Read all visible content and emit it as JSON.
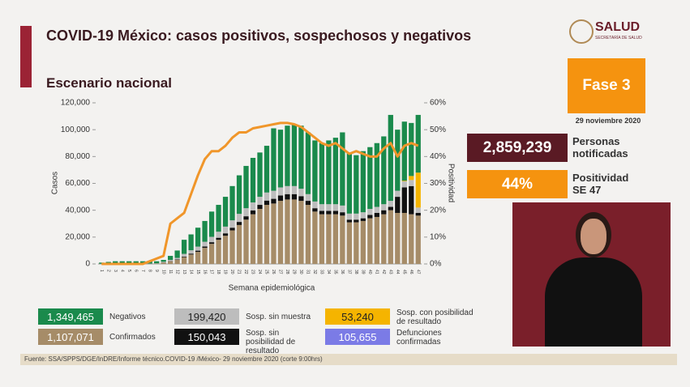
{
  "header": {
    "title": "COVID-19 México: casos positivos, sospechosos y negativos",
    "subtitle": "Escenario nacional",
    "logo": "SALUD",
    "logo_sub": "SECRETARÍA DE SALUD"
  },
  "phase": "Fase 3",
  "date": "29 noviembre 2020",
  "indicators": [
    {
      "figure": "2,859,239",
      "caption": "Personas notificadas",
      "color": "#5a1a24"
    },
    {
      "figure": "44%",
      "caption": "Positividad SE 47",
      "color": "#f5930f"
    }
  ],
  "deaths": {
    "total": "105,655",
    "name": "Defunciones confirmadas",
    "color": "#7b7be6"
  },
  "source": "Fuente: SSA/SPPS/DGE/InDRE/Informe técnico.COVID-19 /México- 29 noviembre 2020 (corte 9:00hrs)",
  "chart_data": {
    "type": "bar",
    "stacked": true,
    "xlabel": "Semana epidemiológica",
    "ylabel": "Casos",
    "categories": [
      "1",
      "2",
      "3",
      "4",
      "5",
      "6",
      "7",
      "8",
      "9",
      "10",
      "11",
      "12",
      "13",
      "14",
      "15",
      "16",
      "17",
      "18",
      "19",
      "20",
      "21",
      "22",
      "23",
      "24",
      "25",
      "26",
      "27",
      "28",
      "29",
      "30",
      "31",
      "32",
      "33",
      "34",
      "35",
      "36",
      "37",
      "38",
      "39",
      "40",
      "41",
      "42",
      "43",
      "44",
      "45",
      "46",
      "47"
    ],
    "series": [
      {
        "name": "Confirmados",
        "total": "1,107,071",
        "color": "#a68c68",
        "values": [
          100,
          150,
          150,
          150,
          200,
          200,
          200,
          200,
          300,
          1000,
          2000,
          3000,
          5000,
          7000,
          9000,
          12000,
          15000,
          18000,
          21000,
          25000,
          29000,
          33000,
          37000,
          41000,
          44000,
          45000,
          47000,
          48000,
          48000,
          47000,
          44000,
          39000,
          37000,
          37000,
          37000,
          36000,
          31000,
          31000,
          32000,
          34000,
          35000,
          37000,
          40000,
          38000,
          38000,
          37000,
          36000
        ]
      },
      {
        "name": "Sosp. sin posibilidad de resultado",
        "total": "150,043",
        "color": "#111111",
        "values": [
          0,
          0,
          0,
          0,
          0,
          0,
          0,
          0,
          0,
          100,
          200,
          300,
          500,
          700,
          900,
          1000,
          1200,
          1500,
          1800,
          2000,
          2300,
          2500,
          2800,
          3000,
          3200,
          3500,
          4000,
          4000,
          4000,
          3500,
          3000,
          2500,
          2500,
          2500,
          2500,
          2500,
          2000,
          2000,
          2000,
          2500,
          3000,
          3000,
          2500,
          12000,
          19000,
          21000,
          2000
        ]
      },
      {
        "name": "Sosp. sin muestra",
        "total": "199,420",
        "color": "#bdbdbd",
        "values": [
          50,
          50,
          100,
          100,
          100,
          100,
          100,
          100,
          200,
          500,
          800,
          1200,
          2000,
          2500,
          3000,
          3500,
          4000,
          4500,
          5000,
          5500,
          6000,
          6000,
          6000,
          6000,
          6000,
          6000,
          6000,
          6000,
          6000,
          5500,
          5000,
          5000,
          5000,
          5000,
          5000,
          5000,
          4500,
          4500,
          4500,
          4500,
          4500,
          4500,
          4500,
          4500,
          4500,
          4500,
          4000
        ]
      },
      {
        "name": "Sosp. con posibilidad de resultado",
        "total": "53,240",
        "color": "#f5b400",
        "values": [
          0,
          0,
          0,
          0,
          0,
          0,
          0,
          0,
          0,
          0,
          0,
          0,
          0,
          0,
          0,
          0,
          0,
          0,
          0,
          0,
          0,
          0,
          0,
          0,
          0,
          0,
          0,
          0,
          0,
          0,
          0,
          0,
          0,
          0,
          0,
          0,
          0,
          0,
          0,
          0,
          0,
          0,
          0,
          0,
          500,
          3000,
          26000
        ]
      },
      {
        "name": "Negativos",
        "total": "1,349,465",
        "color": "#1a8a4c",
        "values": [
          850,
          1300,
          1750,
          1750,
          1700,
          1700,
          1700,
          1700,
          1500,
          1400,
          3000,
          5500,
          10500,
          11800,
          14100,
          15500,
          18800,
          20000,
          22200,
          25500,
          28700,
          31500,
          33200,
          33000,
          34800,
          46500,
          43000,
          45000,
          46000,
          47000,
          46000,
          45500,
          45500,
          47500,
          49500,
          54500,
          45500,
          43500,
          45500,
          46000,
          47500,
          50500,
          64000,
          45500,
          44000,
          39500,
          43000
        ]
      },
      {
        "name": "Positividad",
        "type": "line",
        "axis": "y2",
        "color": "#f0962a",
        "values": [
          0,
          0,
          0,
          0,
          0,
          0,
          0,
          1,
          2,
          3,
          15,
          17,
          19,
          26,
          33,
          39,
          42,
          42,
          44,
          47,
          49,
          49,
          50.5,
          51,
          51.5,
          52,
          52.5,
          52.5,
          52,
          51,
          49,
          47,
          45,
          44,
          45,
          43,
          41,
          42,
          41,
          40,
          40,
          43,
          45,
          40,
          44,
          45,
          44
        ]
      }
    ],
    "ylim": [
      0,
      120000
    ],
    "yticks": [
      0,
      {
        "value": 20000,
        "label": "20,000"
      },
      {
        "value": 40000,
        "label": "40,000"
      },
      {
        "value": 60000,
        "label": "60,000"
      },
      {
        "value": 80000,
        "label": "80,000"
      },
      {
        "value": 100000,
        "label": "100,000"
      },
      {
        "value": 120000,
        "label": "120,000"
      }
    ],
    "y2lim": [
      0,
      60
    ],
    "y2ticks": [
      {
        "value": 0,
        "label": "0%"
      },
      {
        "value": 10,
        "label": "10%"
      },
      {
        "value": 20,
        "label": "20%"
      },
      {
        "value": 30,
        "label": "30%"
      },
      {
        "value": 40,
        "label": "40%"
      },
      {
        "value": 50,
        "label": "50%"
      },
      {
        "value": 60,
        "label": "60%"
      }
    ],
    "grid": false
  }
}
